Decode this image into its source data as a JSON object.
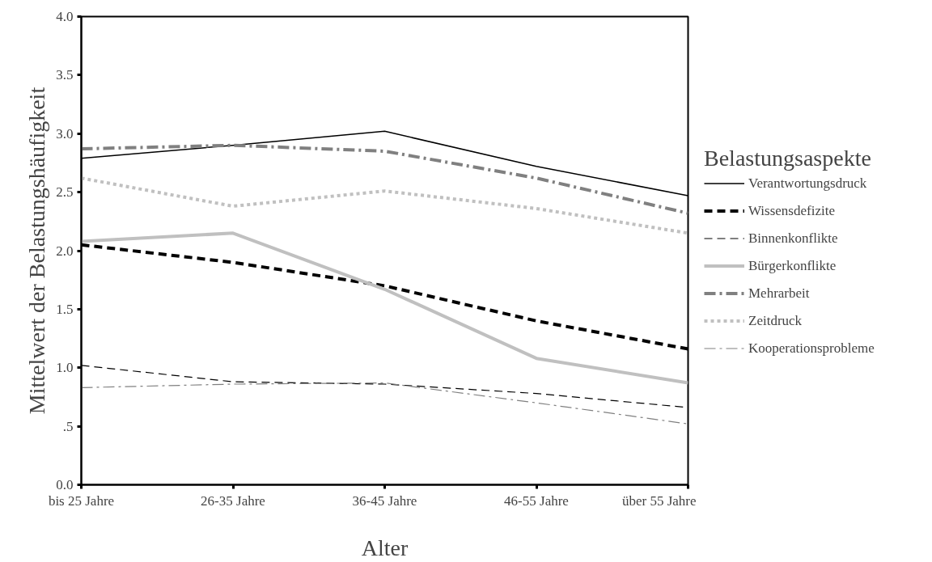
{
  "chart_data": {
    "type": "line",
    "xlabel": "Alter",
    "ylabel": "Mittelwert der Belastungshäufigkeit",
    "legend_title": "Belastungsaspekte",
    "legend": "right",
    "grid": false,
    "marker": "none",
    "categories": [
      "bis 25 Jahre",
      "26-35 Jahre",
      "36-45 Jahre",
      "46-55 Jahre",
      "über 55 Jahre"
    ],
    "ylim": [
      0,
      4
    ],
    "yticks": [
      {
        "value": 0,
        "label": "0.0"
      },
      {
        "value": 0.5,
        "label": ".5"
      },
      {
        "value": 1,
        "label": "1.0"
      },
      {
        "value": 1.5,
        "label": "1.5"
      },
      {
        "value": 2,
        "label": "2.0"
      },
      {
        "value": 2.5,
        "label": "2.5"
      },
      {
        "value": 3,
        "label": "3.0"
      },
      {
        "value": 3.5,
        "label": "3.5"
      },
      {
        "value": 4,
        "label": "4.0"
      }
    ],
    "series": [
      {
        "name": "Verantwortungsdruck",
        "color": "#000000",
        "line_style": "solid",
        "values": [
          2.79,
          2.9,
          3.02,
          2.72,
          2.47
        ]
      },
      {
        "name": "Wissensdefizite",
        "color": "#000000",
        "line_style": "dashed",
        "values": [
          2.05,
          1.9,
          1.7,
          1.4,
          1.16
        ]
      },
      {
        "name": "Binnenkonflikte",
        "color": "#000000",
        "line_style": "dashed",
        "values": [
          1.02,
          0.88,
          0.86,
          0.78,
          0.66
        ]
      },
      {
        "name": "Bürgerkonflikte",
        "color": "#c0c0c0",
        "line_style": "solid",
        "values": [
          2.08,
          2.15,
          1.67,
          1.08,
          0.87
        ]
      },
      {
        "name": "Mehrarbeit",
        "color": "#808080",
        "line_style": "dashdot",
        "values": [
          2.87,
          2.9,
          2.85,
          2.62,
          2.32
        ]
      },
      {
        "name": "Zeitdruck",
        "color": "#c0c0c0",
        "line_style": "dotted",
        "values": [
          2.62,
          2.38,
          2.51,
          2.36,
          2.15
        ]
      },
      {
        "name": "Kooperationsprobleme",
        "color": "#808080",
        "line_style": "dashdot",
        "values": [
          0.83,
          0.86,
          0.87,
          0.7,
          0.52
        ]
      }
    ]
  }
}
